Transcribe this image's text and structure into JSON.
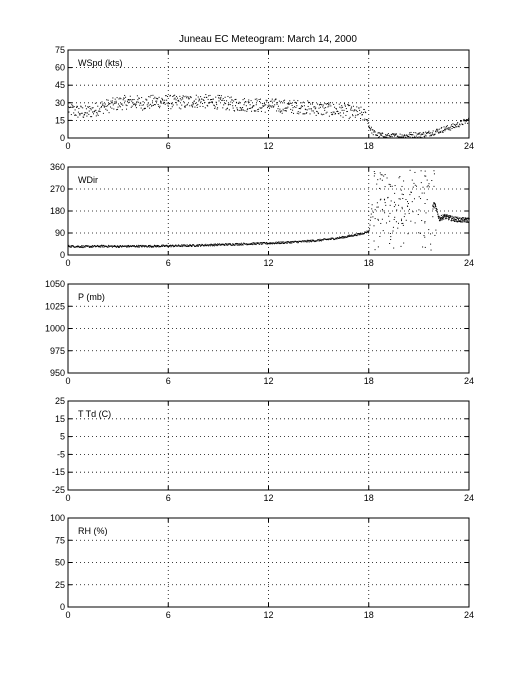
{
  "title": "Juneau EC Meteogram:      March 14, 2000",
  "chart_data": [
    {
      "type": "scatter",
      "label": "WSpd (kts)",
      "xlim": [
        0,
        24
      ],
      "ylim": [
        0,
        75
      ],
      "xticks": [
        0,
        6,
        12,
        18,
        24
      ],
      "yticks": [
        0,
        15,
        30,
        45,
        60,
        75
      ],
      "grid": true,
      "series": [
        {
          "x": [
            0,
            0.5,
            1,
            1.5,
            2,
            2.5,
            3,
            3.5,
            4,
            4.5,
            5,
            5.5,
            6,
            6.5,
            7,
            7.5,
            8,
            8.5,
            9,
            9.5,
            10,
            10.5,
            11,
            11.5,
            12,
            12.5,
            13,
            13.5,
            14,
            14.5,
            15,
            15.5,
            16,
            16.5,
            17,
            17.5,
            17.8,
            18,
            18.25,
            18.5,
            19,
            19.5,
            20,
            20.5,
            21,
            21.5,
            22,
            22.5,
            23,
            23.5,
            24
          ],
          "y": [
            25,
            23,
            22,
            24,
            27,
            28,
            30,
            31,
            31,
            30,
            31,
            32,
            31,
            31,
            31,
            32,
            32,
            31,
            31,
            30,
            29,
            29,
            29,
            28,
            28,
            28,
            27,
            27,
            27,
            26,
            25,
            25,
            24,
            24,
            22,
            21,
            19,
            10,
            5,
            3,
            2,
            2,
            2,
            3,
            3,
            4,
            6,
            8,
            10,
            13,
            16
          ]
        }
      ]
    },
    {
      "type": "scatter",
      "label": "WDir",
      "xlim": [
        0,
        24
      ],
      "ylim": [
        0,
        360
      ],
      "xticks": [
        0,
        6,
        12,
        18,
        24
      ],
      "yticks": [
        0,
        90,
        180,
        270,
        360
      ],
      "grid": true,
      "series": [
        {
          "x": [
            0,
            1,
            2,
            3,
            4,
            5,
            6,
            7,
            8,
            9,
            10,
            11,
            12,
            13,
            14,
            15,
            16,
            16.5,
            17,
            17.5,
            18,
            18.3,
            18.6,
            18.9,
            19.2,
            19.5,
            19.8,
            20.1,
            20.4,
            20.7,
            21,
            21.3,
            21.6,
            21.9,
            22.2,
            22.5,
            23,
            23.5,
            24
          ],
          "y": [
            38,
            36,
            38,
            37,
            38,
            38,
            39,
            40,
            42,
            44,
            46,
            48,
            50,
            53,
            57,
            62,
            70,
            75,
            82,
            88,
            100,
            280,
            200,
            120,
            310,
            230,
            60,
            270,
            190,
            340,
            110,
            250,
            170,
            210,
            150,
            160,
            150,
            145,
            145
          ]
        }
      ]
    },
    {
      "type": "scatter",
      "label": "P (mb)",
      "xlim": [
        0,
        24
      ],
      "ylim": [
        950,
        1050
      ],
      "xticks": [
        0,
        6,
        12,
        18,
        24
      ],
      "yticks": [
        950,
        975,
        1000,
        1025,
        1050
      ],
      "grid": true,
      "series": []
    },
    {
      "type": "scatter",
      "label": "T Td (C)",
      "xlim": [
        0,
        24
      ],
      "ylim": [
        -25,
        25
      ],
      "xticks": [
        0,
        6,
        12,
        18,
        24
      ],
      "yticks": [
        -25,
        -15,
        -5,
        5,
        15,
        25
      ],
      "grid": true,
      "series": []
    },
    {
      "type": "scatter",
      "label": "RH (%)",
      "xlim": [
        0,
        24
      ],
      "ylim": [
        0,
        100
      ],
      "xticks": [
        0,
        6,
        12,
        18,
        24
      ],
      "yticks": [
        0,
        25,
        50,
        75,
        100
      ],
      "grid": true,
      "series": []
    }
  ]
}
